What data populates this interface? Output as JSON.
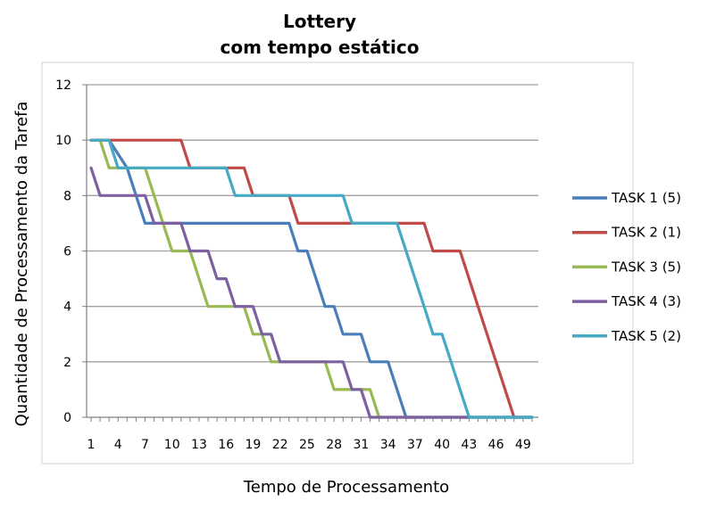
{
  "chart_data": {
    "type": "line",
    "title_lines": [
      "Lottery",
      "com tempo estático"
    ],
    "xlabel": "Tempo de Processamento",
    "ylabel": "Quantidade de Processamento da Tarefa",
    "x_ticks": [
      1,
      4,
      7,
      10,
      13,
      16,
      19,
      22,
      25,
      28,
      31,
      34,
      37,
      40,
      43,
      46,
      49
    ],
    "xlim": [
      1,
      50
    ],
    "y_ticks": [
      0,
      2,
      4,
      6,
      8,
      10,
      12
    ],
    "ylim": [
      0,
      12
    ],
    "grid": "horizontal",
    "legend_position": "right",
    "series": [
      {
        "name": "TASK 1 (5)",
        "color": "#4a7ebb",
        "points": [
          [
            1,
            10
          ],
          [
            3,
            10
          ],
          [
            5,
            9
          ],
          [
            7,
            7
          ],
          [
            23,
            7
          ],
          [
            24,
            6
          ],
          [
            25,
            6
          ],
          [
            27,
            4
          ],
          [
            28,
            4
          ],
          [
            29,
            3
          ],
          [
            31,
            3
          ],
          [
            32,
            2
          ],
          [
            34,
            2
          ],
          [
            36,
            0
          ],
          [
            50,
            0
          ]
        ]
      },
      {
        "name": "TASK 2 (1)",
        "color": "#be4b48",
        "points": [
          [
            1,
            10
          ],
          [
            11,
            10
          ],
          [
            12,
            9
          ],
          [
            18,
            9
          ],
          [
            19,
            8
          ],
          [
            23,
            8
          ],
          [
            24,
            7
          ],
          [
            36,
            7
          ],
          [
            38,
            7
          ],
          [
            39,
            6
          ],
          [
            42,
            6
          ],
          [
            43,
            5
          ],
          [
            44,
            4
          ],
          [
            45,
            3
          ],
          [
            47,
            1
          ],
          [
            48,
            0
          ],
          [
            50,
            0
          ]
        ]
      },
      {
        "name": "TASK 3 (5)",
        "color": "#98b954",
        "points": [
          [
            1,
            10
          ],
          [
            2,
            10
          ],
          [
            3,
            9
          ],
          [
            7,
            9
          ],
          [
            8,
            8
          ],
          [
            9,
            7
          ],
          [
            10,
            6
          ],
          [
            12,
            6
          ],
          [
            14,
            4
          ],
          [
            18,
            4
          ],
          [
            19,
            3
          ],
          [
            20,
            3
          ],
          [
            21,
            2
          ],
          [
            27,
            2
          ],
          [
            28,
            1
          ],
          [
            32,
            1
          ],
          [
            33,
            0
          ],
          [
            50,
            0
          ]
        ]
      },
      {
        "name": "TASK 4 (3)",
        "color": "#7d60a0",
        "points": [
          [
            1,
            9
          ],
          [
            2,
            8
          ],
          [
            7,
            8
          ],
          [
            8,
            7
          ],
          [
            11,
            7
          ],
          [
            12,
            6
          ],
          [
            14,
            6
          ],
          [
            15,
            5
          ],
          [
            16,
            5
          ],
          [
            17,
            4
          ],
          [
            19,
            4
          ],
          [
            20,
            3
          ],
          [
            21,
            3
          ],
          [
            22,
            2
          ],
          [
            29,
            2
          ],
          [
            30,
            1
          ],
          [
            31,
            1
          ],
          [
            32,
            0
          ],
          [
            50,
            0
          ]
        ]
      },
      {
        "name": "TASK 5 (2)",
        "color": "#46aac5",
        "points": [
          [
            1,
            10
          ],
          [
            3,
            10
          ],
          [
            4,
            9
          ],
          [
            16,
            9
          ],
          [
            17,
            8
          ],
          [
            29,
            8
          ],
          [
            30,
            7
          ],
          [
            35,
            7
          ],
          [
            36,
            6
          ],
          [
            37,
            5
          ],
          [
            38,
            4
          ],
          [
            39,
            3
          ],
          [
            40,
            3
          ],
          [
            41,
            2
          ],
          [
            42,
            1
          ],
          [
            43,
            0
          ],
          [
            50,
            0
          ]
        ]
      }
    ]
  }
}
